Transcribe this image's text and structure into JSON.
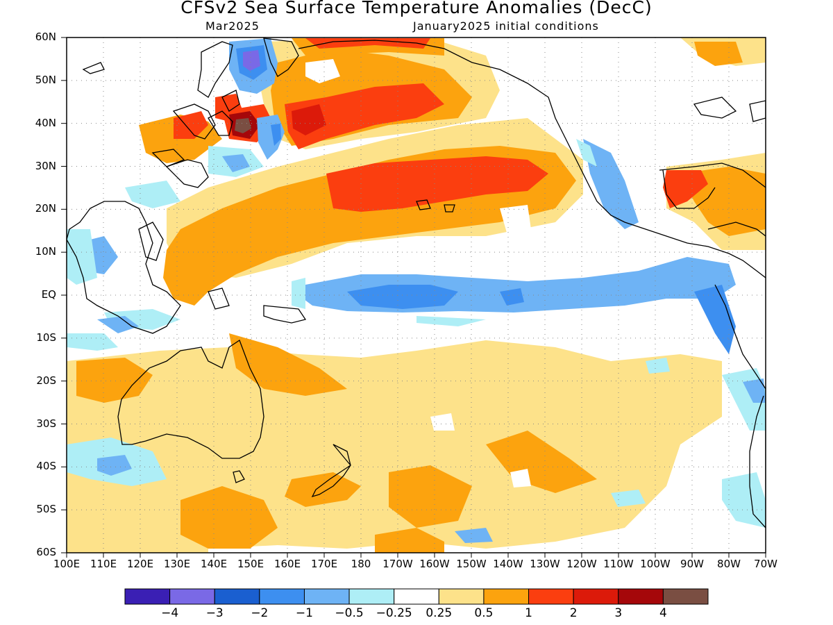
{
  "title": "CFSv2 Sea Surface Temperature Anomalies (DecC)",
  "subtitle_left": "Mar2025",
  "subtitle_right": "January2025 initial conditions",
  "lat_labels": [
    "60N",
    "50N",
    "40N",
    "30N",
    "20N",
    "10N",
    "EQ",
    "10S",
    "20S",
    "30S",
    "40S",
    "50S",
    "60S"
  ],
  "lon_labels": [
    "100E",
    "110E",
    "120E",
    "130E",
    "140E",
    "150E",
    "160E",
    "170E",
    "180",
    "170W",
    "160W",
    "150W",
    "140W",
    "130W",
    "120W",
    "110W",
    "100W",
    "90W",
    "80W",
    "70W"
  ],
  "colorbar": {
    "colors": [
      "#3a1fb4",
      "#7a69e6",
      "#1a5fd0",
      "#3d8ff0",
      "#6eb3f5",
      "#aeeef6",
      "#ffffff",
      "#fde28a",
      "#fca30e",
      "#fb3e0f",
      "#dc1a0a",
      "#a5070a",
      "#7a4e42"
    ],
    "labels": [
      "−4",
      "−3",
      "−2",
      "−1",
      "−0.5",
      "−0.25",
      "0.25",
      "0.5",
      "1",
      "2",
      "3",
      "4"
    ]
  }
}
